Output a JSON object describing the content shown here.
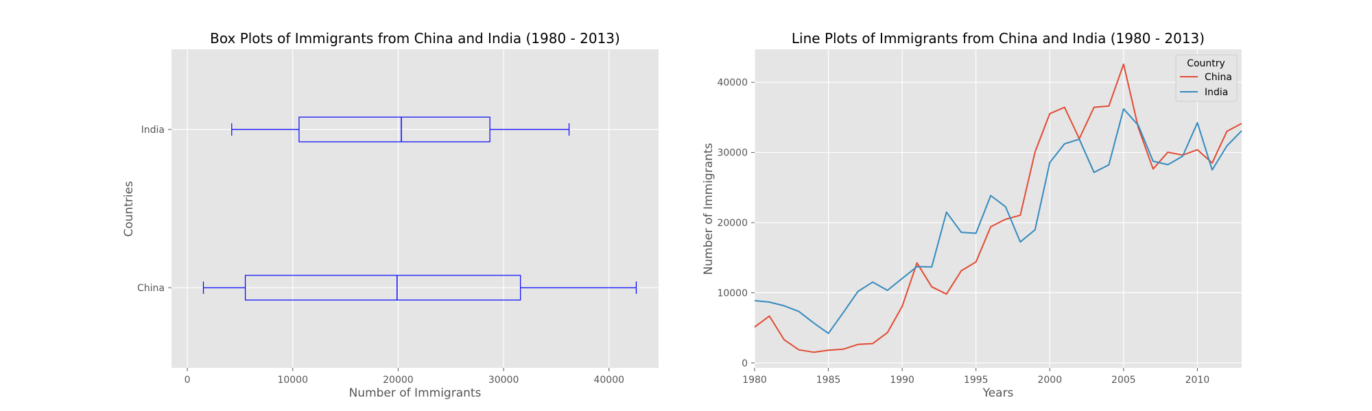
{
  "chart_data": [
    {
      "type": "box",
      "orientation": "horizontal",
      "title": "Box Plots of Immigrants from China and India (1980 - 2013)",
      "xlabel": "Number of Immigrants",
      "ylabel": "Countries",
      "xlim": [
        -1500,
        44700
      ],
      "xticks": [
        0,
        10000,
        20000,
        30000,
        40000
      ],
      "grid": true,
      "box_color": "#0000ff",
      "categories": [
        "China",
        "India"
      ],
      "boxes": [
        {
          "name": "China",
          "min": 1527,
          "q1": 5500,
          "median": 19900,
          "q3": 31600,
          "max": 42584
        },
        {
          "name": "India",
          "min": 4211,
          "q1": 10600,
          "median": 20300,
          "q3": 28700,
          "max": 36210
        }
      ]
    },
    {
      "type": "line",
      "title": "Line Plots of Immigrants from China and India (1980 - 2013)",
      "xlabel": "Years",
      "ylabel": "Number of Immigrants",
      "xlim": [
        1980,
        2013
      ],
      "ylim": [
        -700,
        44700
      ],
      "xticks": [
        1980,
        1985,
        1990,
        1995,
        2000,
        2005,
        2010
      ],
      "yticks": [
        0,
        10000,
        20000,
        30000,
        40000
      ],
      "grid": true,
      "legend": {
        "title": "Country",
        "placement": "upper-right"
      },
      "x": [
        1980,
        1981,
        1982,
        1983,
        1984,
        1985,
        1986,
        1987,
        1988,
        1989,
        1990,
        1991,
        1992,
        1993,
        1994,
        1995,
        1996,
        1997,
        1998,
        1999,
        2000,
        2001,
        2002,
        2003,
        2004,
        2005,
        2006,
        2007,
        2008,
        2009,
        2010,
        2011,
        2012,
        2013
      ],
      "series": [
        {
          "name": "China",
          "color": "#e24a33",
          "values": [
            5123,
            6682,
            3308,
            1863,
            1527,
            1816,
            1960,
            2643,
            2758,
            4323,
            8076,
            14255,
            10846,
            9817,
            13128,
            14398,
            19415,
            20475,
            21049,
            30069,
            35529,
            36434,
            31961,
            36439,
            36619,
            42584,
            33518,
            27642,
            30037,
            29622,
            30391,
            28502,
            33024,
            34129
          ]
        },
        {
          "name": "India",
          "color": "#348abd",
          "values": [
            8880,
            8670,
            8147,
            7338,
            5704,
            4211,
            7150,
            10189,
            11522,
            10343,
            12041,
            13734,
            13673,
            21496,
            18620,
            18489,
            23859,
            22268,
            17241,
            18974,
            28572,
            31223,
            31889,
            27155,
            28235,
            36210,
            33848,
            28742,
            28261,
            29456,
            34235,
            27509,
            30933,
            33087
          ]
        }
      ]
    }
  ]
}
